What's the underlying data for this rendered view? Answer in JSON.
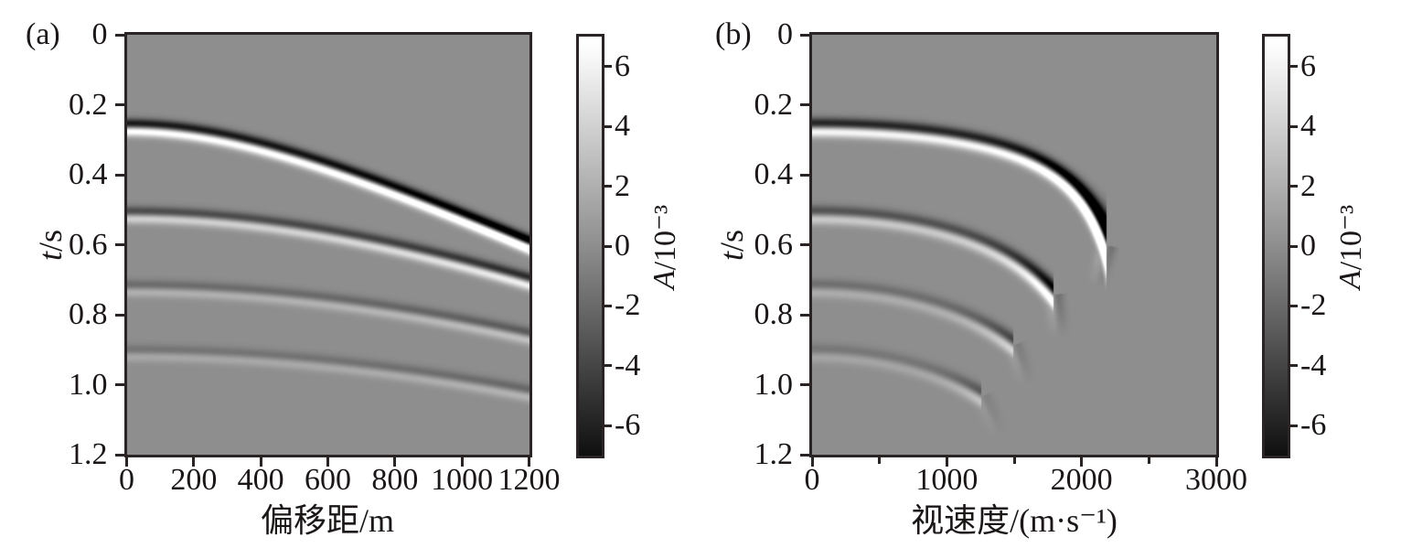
{
  "figure": {
    "panels": [
      {
        "tag": "(a)",
        "x_title": "偏移距/m",
        "y_title_var": "t",
        "y_title_rest": "/s",
        "x_range": [
          0,
          1200
        ],
        "x_tick_values": [
          0,
          200,
          400,
          600,
          800,
          1000,
          1200
        ],
        "x_tick_labels": [
          "0",
          "200",
          "400",
          "600",
          "800",
          "1000",
          "1200"
        ],
        "x_minor_tick_values": [],
        "y_range": [
          0,
          1.2
        ],
        "y_tick_values": [
          0,
          0.2,
          0.4,
          0.6,
          0.8,
          1.0,
          1.2
        ],
        "y_tick_labels": [
          "0",
          "0.2",
          "0.4",
          "0.6",
          "0.8",
          "1.0",
          "1.2"
        ],
        "colorbar": {
          "label_var": "A",
          "label_rest": "/10⁻³",
          "tick_values": [
            6,
            4,
            2,
            0,
            -2,
            -4,
            -6
          ],
          "tick_labels": [
            "6",
            "4",
            "2",
            "0",
            "-2",
            "-4",
            "-6"
          ],
          "range": [
            -7,
            7
          ]
        }
      },
      {
        "tag": "(b)",
        "x_title": "视速度/(m·s⁻¹)",
        "y_title_var": "t",
        "y_title_rest": "/s",
        "x_range": [
          0,
          3000
        ],
        "x_tick_values": [
          0,
          1000,
          2000,
          3000
        ],
        "x_tick_labels": [
          "0",
          "1000",
          "2000",
          "3000"
        ],
        "x_minor_tick_values": [
          500,
          1500,
          2500
        ],
        "y_range": [
          0,
          1.2
        ],
        "y_tick_values": [
          0,
          0.2,
          0.4,
          0.6,
          0.8,
          1.0,
          1.2
        ],
        "y_tick_labels": [
          "0",
          "0.2",
          "0.4",
          "0.6",
          "0.8",
          "1.0",
          "1.2"
        ],
        "colorbar": {
          "label_var": "A",
          "label_rest": "/10⁻³",
          "tick_values": [
            6,
            4,
            2,
            0,
            -2,
            -4,
            -6
          ],
          "tick_labels": [
            "6",
            "4",
            "2",
            "0",
            "-2",
            "-4",
            "-6"
          ],
          "range": [
            -7,
            7
          ]
        }
      }
    ]
  },
  "chart_data": {
    "type": "heatmap",
    "colormap": "gray",
    "background_amplitude": 0,
    "colorbar_label": "A/10⁻³",
    "colorbar_range": [
      -7,
      7
    ],
    "panels": [
      {
        "id": "a",
        "xlabel": "偏移距/m",
        "ylabel": "t/s",
        "xlim": [
          0,
          1200
        ],
        "ylim": [
          0,
          1.2
        ],
        "y_axis_down": true,
        "events": [
          {
            "t0_s": 0.265,
            "v_mps": 2230,
            "peak_amp": 7.0,
            "t_at_max_offset": 0.6
          },
          {
            "t0_s": 0.515,
            "v_mps": 2490,
            "peak_amp": 3.9,
            "t_at_max_offset": 0.705
          },
          {
            "t0_s": 0.725,
            "v_mps": 2573,
            "peak_amp": 2.0,
            "t_at_max_offset": 0.862
          },
          {
            "t0_s": 0.91,
            "v_mps": 2545,
            "peak_amp": 1.5,
            "t_at_max_offset": 1.025
          }
        ]
      },
      {
        "id": "b",
        "xlabel": "视速度/(m·s⁻¹)",
        "ylabel": "t/s",
        "xlim": [
          0,
          3000
        ],
        "ylim": [
          0,
          1.2
        ],
        "y_axis_down": true,
        "events": [
          {
            "t0_s": 0.265,
            "v_curve": 2437,
            "end_v": 2185,
            "end_t": 0.6,
            "peak_amp": 7.0
          },
          {
            "t0_s": 0.515,
            "v_curve": 2484,
            "end_v": 1790,
            "end_t": 0.742,
            "peak_amp": 3.9
          },
          {
            "t0_s": 0.725,
            "v_curve": 2592,
            "end_v": 1490,
            "end_t": 0.886,
            "peak_amp": 2.0
          },
          {
            "t0_s": 0.91,
            "v_curve": 2647,
            "end_v": 1255,
            "end_t": 1.033,
            "peak_amp": 1.5
          }
        ]
      }
    ],
    "wavelet": {
      "type": "gaussian-derivative",
      "sigma_s_panel_a": 0.0122,
      "sigma_s_panel_b": 0.0135
    }
  }
}
